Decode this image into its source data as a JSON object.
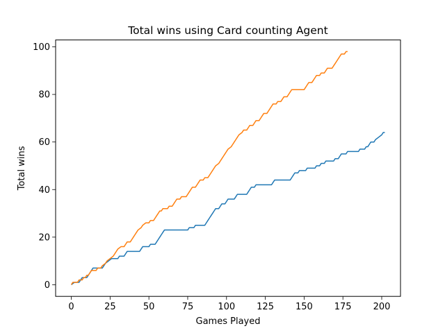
{
  "chart_data": {
    "type": "line",
    "title": "Total wins using Card counting Agent",
    "xlabel": "Games Played",
    "ylabel": "Total wins",
    "xlim": [
      -10.1,
      212.1
    ],
    "ylim": [
      -4.9,
      102.9
    ],
    "xticks": [
      0,
      25,
      50,
      75,
      100,
      125,
      150,
      175,
      200
    ],
    "yticks": [
      0,
      20,
      40,
      60,
      80,
      100
    ],
    "grid": false,
    "legend": "none",
    "series": [
      {
        "color": "#1f77b4",
        "points": [
          [
            0,
            0
          ],
          [
            2,
            1
          ],
          [
            5,
            1
          ],
          [
            6,
            2
          ],
          [
            7,
            3
          ],
          [
            10,
            3
          ],
          [
            11,
            4
          ],
          [
            12,
            5
          ],
          [
            13,
            6
          ],
          [
            14,
            7
          ],
          [
            20,
            7
          ],
          [
            21,
            8
          ],
          [
            22,
            9
          ],
          [
            24,
            10
          ],
          [
            26,
            11
          ],
          [
            30,
            11
          ],
          [
            31,
            12
          ],
          [
            34,
            12
          ],
          [
            35,
            13
          ],
          [
            36,
            14
          ],
          [
            44,
            14
          ],
          [
            45,
            15
          ],
          [
            46,
            16
          ],
          [
            50,
            16
          ],
          [
            51,
            17
          ],
          [
            54,
            17
          ],
          [
            55,
            18
          ],
          [
            56,
            19
          ],
          [
            57,
            20
          ],
          [
            58,
            21
          ],
          [
            59,
            22
          ],
          [
            60,
            23
          ],
          [
            75,
            23
          ],
          [
            76,
            24
          ],
          [
            79,
            24
          ],
          [
            80,
            25
          ],
          [
            86,
            25
          ],
          [
            87,
            26
          ],
          [
            88,
            27
          ],
          [
            89,
            28
          ],
          [
            90,
            29
          ],
          [
            91,
            30
          ],
          [
            92,
            31
          ],
          [
            93,
            32
          ],
          [
            95,
            32
          ],
          [
            96,
            33
          ],
          [
            97,
            34
          ],
          [
            99,
            34
          ],
          [
            100,
            35
          ],
          [
            101,
            36
          ],
          [
            105,
            36
          ],
          [
            106,
            37
          ],
          [
            107,
            38
          ],
          [
            113,
            38
          ],
          [
            114,
            39
          ],
          [
            115,
            40
          ],
          [
            116,
            41
          ],
          [
            118,
            41
          ],
          [
            119,
            42
          ],
          [
            129,
            42
          ],
          [
            130,
            43
          ],
          [
            131,
            44
          ],
          [
            141,
            44
          ],
          [
            142,
            45
          ],
          [
            143,
            46
          ],
          [
            144,
            47
          ],
          [
            146,
            47
          ],
          [
            147,
            48
          ],
          [
            151,
            48
          ],
          [
            152,
            49
          ],
          [
            157,
            49
          ],
          [
            158,
            50
          ],
          [
            160,
            50
          ],
          [
            161,
            51
          ],
          [
            163,
            51
          ],
          [
            164,
            52
          ],
          [
            169,
            52
          ],
          [
            170,
            53
          ],
          [
            172,
            53
          ],
          [
            173,
            54
          ],
          [
            174,
            55
          ],
          [
            177,
            55
          ],
          [
            178,
            56
          ],
          [
            185,
            56
          ],
          [
            186,
            57
          ],
          [
            189,
            57
          ],
          [
            190,
            58
          ],
          [
            191,
            58
          ],
          [
            192,
            59
          ],
          [
            193,
            60
          ],
          [
            195,
            60
          ],
          [
            196,
            61
          ],
          [
            198,
            62
          ],
          [
            200,
            63
          ],
          [
            201,
            64
          ],
          [
            202,
            64
          ]
        ]
      },
      {
        "color": "#ff7f0e",
        "points": [
          [
            0,
            0
          ],
          [
            1,
            1
          ],
          [
            4,
            1
          ],
          [
            5,
            2
          ],
          [
            7,
            2
          ],
          [
            8,
            3
          ],
          [
            9,
            3
          ],
          [
            10,
            4
          ],
          [
            11,
            4
          ],
          [
            12,
            5
          ],
          [
            13,
            6
          ],
          [
            16,
            6
          ],
          [
            17,
            7
          ],
          [
            19,
            7
          ],
          [
            20,
            8
          ],
          [
            22,
            9
          ],
          [
            23,
            10
          ],
          [
            25,
            11
          ],
          [
            27,
            12
          ],
          [
            28,
            13
          ],
          [
            29,
            14
          ],
          [
            30,
            15
          ],
          [
            32,
            16
          ],
          [
            34,
            16
          ],
          [
            35,
            17
          ],
          [
            36,
            18
          ],
          [
            38,
            18
          ],
          [
            39,
            19
          ],
          [
            40,
            20
          ],
          [
            41,
            21
          ],
          [
            42,
            22
          ],
          [
            43,
            23
          ],
          [
            45,
            24
          ],
          [
            46,
            25
          ],
          [
            48,
            26
          ],
          [
            50,
            26
          ],
          [
            51,
            27
          ],
          [
            53,
            27
          ],
          [
            54,
            28
          ],
          [
            55,
            29
          ],
          [
            56,
            30
          ],
          [
            57,
            31
          ],
          [
            58,
            31
          ],
          [
            59,
            32
          ],
          [
            62,
            32
          ],
          [
            63,
            33
          ],
          [
            65,
            33
          ],
          [
            66,
            34
          ],
          [
            67,
            35
          ],
          [
            68,
            36
          ],
          [
            70,
            36
          ],
          [
            71,
            37
          ],
          [
            74,
            37
          ],
          [
            75,
            38
          ],
          [
            76,
            39
          ],
          [
            77,
            40
          ],
          [
            78,
            41
          ],
          [
            80,
            41
          ],
          [
            81,
            42
          ],
          [
            82,
            43
          ],
          [
            83,
            44
          ],
          [
            85,
            44
          ],
          [
            86,
            45
          ],
          [
            88,
            45
          ],
          [
            89,
            46
          ],
          [
            90,
            47
          ],
          [
            91,
            48
          ],
          [
            92,
            49
          ],
          [
            93,
            50
          ],
          [
            95,
            51
          ],
          [
            96,
            52
          ],
          [
            97,
            53
          ],
          [
            98,
            54
          ],
          [
            99,
            55
          ],
          [
            100,
            56
          ],
          [
            101,
            57
          ],
          [
            103,
            58
          ],
          [
            104,
            59
          ],
          [
            105,
            60
          ],
          [
            106,
            61
          ],
          [
            107,
            62
          ],
          [
            108,
            63
          ],
          [
            110,
            64
          ],
          [
            111,
            65
          ],
          [
            113,
            65
          ],
          [
            114,
            66
          ],
          [
            115,
            67
          ],
          [
            117,
            67
          ],
          [
            118,
            68
          ],
          [
            119,
            69
          ],
          [
            121,
            69
          ],
          [
            122,
            70
          ],
          [
            123,
            71
          ],
          [
            124,
            72
          ],
          [
            126,
            72
          ],
          [
            127,
            73
          ],
          [
            128,
            74
          ],
          [
            129,
            75
          ],
          [
            130,
            76
          ],
          [
            132,
            76
          ],
          [
            133,
            77
          ],
          [
            135,
            77
          ],
          [
            136,
            78
          ],
          [
            137,
            79
          ],
          [
            139,
            79
          ],
          [
            140,
            80
          ],
          [
            141,
            81
          ],
          [
            142,
            82
          ],
          [
            150,
            82
          ],
          [
            151,
            83
          ],
          [
            152,
            84
          ],
          [
            153,
            85
          ],
          [
            155,
            85
          ],
          [
            156,
            86
          ],
          [
            157,
            87
          ],
          [
            158,
            88
          ],
          [
            160,
            88
          ],
          [
            161,
            89
          ],
          [
            163,
            89
          ],
          [
            164,
            90
          ],
          [
            165,
            91
          ],
          [
            168,
            91
          ],
          [
            169,
            92
          ],
          [
            170,
            93
          ],
          [
            171,
            94
          ],
          [
            172,
            95
          ],
          [
            173,
            96
          ],
          [
            174,
            97
          ],
          [
            176,
            97
          ],
          [
            177,
            98
          ],
          [
            178,
            98
          ]
        ]
      }
    ]
  }
}
